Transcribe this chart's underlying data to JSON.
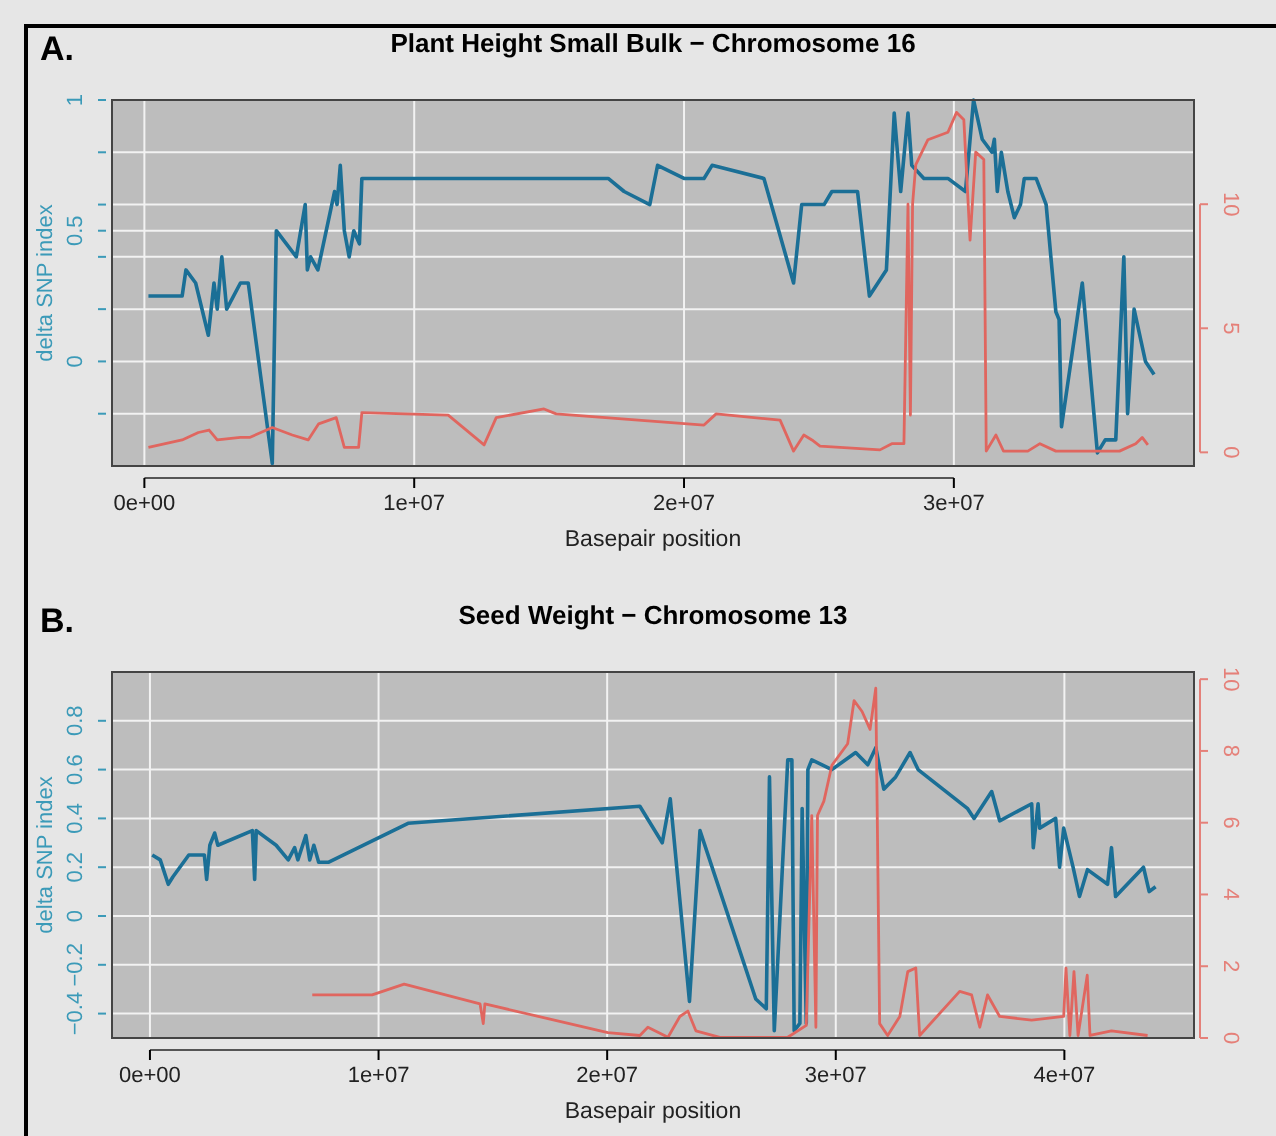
{
  "chart_data": [
    {
      "type": "line",
      "title": "Plant Height Small Bulk − Chromosome 16",
      "xlabel": "Basepair position",
      "ylabel": "delta SNP index",
      "annotations": [
        "A."
      ],
      "grid": true,
      "xlim": [
        -1200000,
        38900000
      ],
      "xticks": [
        {
          "value": 0,
          "label": "0e+00"
        },
        {
          "value": 10000000,
          "label": "1e+07"
        },
        {
          "value": 20000000,
          "label": "2e+07"
        },
        {
          "value": 30000000,
          "label": "3e+07"
        }
      ],
      "ylim": [
        -0.4,
        1
      ],
      "yticks": [
        {
          "value": -0.2,
          "label": null
        },
        0,
        {
          "value": 0.2,
          "label": null
        },
        {
          "value": 0.4,
          "label": null
        },
        0.5,
        {
          "value": 0.6,
          "label": null
        },
        {
          "value": 0.8,
          "label": null
        },
        1
      ],
      "y2lim": [
        -0.55,
        14.2
      ],
      "y2ticks": [
        0,
        5,
        10
      ],
      "series": [
        {
          "color": "#1b6f96",
          "x": [
            150000,
            1400000,
            1540000,
            1900000,
            2370000,
            2580000,
            2700000,
            2870000,
            3050000,
            3560000,
            3850000,
            4740000,
            4890000,
            5630000,
            5960000,
            6040000,
            6160000,
            6430000,
            7050000,
            7140000,
            7260000,
            7410000,
            7590000,
            7760000,
            7970000,
            8060000,
            17190000,
            17780000,
            18730000,
            19020000,
            20000000,
            20740000,
            21040000,
            22960000,
            24060000,
            24360000,
            25190000,
            25480000,
            26430000,
            26870000,
            27500000,
            27790000,
            28030000,
            28300000,
            28440000,
            28890000,
            29780000,
            30430000,
            30730000,
            31050000,
            31410000,
            31500000,
            31610000,
            31760000,
            32000000,
            32240000,
            32470000,
            32610000,
            33050000,
            33420000,
            33780000,
            33900000,
            33990000,
            34760000,
            35320000,
            35610000,
            36000000,
            36300000,
            36440000,
            36680000,
            37100000,
            37420000
          ],
          "values": [
            0.25,
            0.25,
            0.35,
            0.3,
            0.1,
            0.3,
            0.2,
            0.4,
            0.2,
            0.3,
            0.3,
            -0.39,
            0.5,
            0.4,
            0.6,
            0.35,
            0.4,
            0.35,
            0.65,
            0.6,
            0.75,
            0.5,
            0.4,
            0.5,
            0.45,
            0.7,
            0.7,
            0.65,
            0.6,
            0.75,
            0.7,
            0.7,
            0.75,
            0.7,
            0.3,
            0.6,
            0.6,
            0.65,
            0.65,
            0.25,
            0.35,
            0.95,
            0.65,
            0.95,
            0.75,
            0.7,
            0.7,
            0.65,
            1.0,
            0.85,
            0.8,
            0.85,
            0.65,
            0.8,
            0.65,
            0.55,
            0.6,
            0.7,
            0.7,
            0.6,
            0.19,
            0.16,
            -0.25,
            0.3,
            -0.35,
            -0.3,
            -0.3,
            0.4,
            -0.2,
            0.2,
            0,
            -0.05
          ]
        },
        {
          "color": "#e0665f",
          "axis": "y2",
          "x": [
            150000,
            1400000,
            2000000,
            2400000,
            2700000,
            3560000,
            3900000,
            4740000,
            5480000,
            6070000,
            6460000,
            7110000,
            7410000,
            7940000,
            8060000,
            11260000,
            12590000,
            13040000,
            14810000,
            15260000,
            20740000,
            21190000,
            23560000,
            24060000,
            24440000,
            24740000,
            25040000,
            27260000,
            27700000,
            28150000,
            28300000,
            28390000,
            28470000,
            28590000,
            29040000,
            29780000,
            30100000,
            30370000,
            30600000,
            30810000,
            31110000,
            31200000,
            31560000,
            31840000,
            32740000,
            33190000,
            33780000,
            36140000,
            36740000,
            36980000,
            37190000
          ],
          "values": [
            0.2,
            0.5,
            0.8,
            0.9,
            0.5,
            0.6,
            0.6,
            1.0,
            0.7,
            0.5,
            1.15,
            1.4,
            0.2,
            0.2,
            1.6,
            1.5,
            0.3,
            1.4,
            1.75,
            1.55,
            1.1,
            1.55,
            1.3,
            0.05,
            0.7,
            0.5,
            0.25,
            0.1,
            0.35,
            0.35,
            10,
            1.5,
            10,
            11.6,
            12.6,
            12.9,
            13.7,
            13.4,
            8.55,
            12.1,
            11.8,
            0.05,
            0.7,
            0.05,
            0.05,
            0.35,
            0.05,
            0.05,
            0.35,
            0.6,
            0.3
          ]
        }
      ]
    },
    {
      "type": "line",
      "title": "Seed Weight − Chromosome 13",
      "xlabel": "Basepair position",
      "ylabel": "delta SNP index",
      "annotations": [
        "B."
      ],
      "grid": true,
      "xlim": [
        -1660000,
        45670000
      ],
      "xticks": [
        {
          "value": 0,
          "label": "0e+00"
        },
        {
          "value": 10000000,
          "label": "1e+07"
        },
        {
          "value": 20000000,
          "label": "2e+07"
        },
        {
          "value": 30000000,
          "label": "3e+07"
        },
        {
          "value": 40000000,
          "label": "4e+07"
        }
      ],
      "ylim": [
        -0.5,
        1.0
      ],
      "yticks": [
        -0.4,
        -0.2,
        0,
        0.2,
        0.4,
        0.6,
        0.8
      ],
      "y2lim": [
        0,
        10.2
      ],
      "y2ticks": [
        0,
        2,
        4,
        6,
        8,
        10
      ],
      "series": [
        {
          "color": "#1b6f96",
          "x": [
            100000,
            450000,
            800000,
            1000000,
            1700000,
            2380000,
            2480000,
            2620000,
            2830000,
            2970000,
            4480000,
            4580000,
            4650000,
            5520000,
            6050000,
            6330000,
            6470000,
            6820000,
            6990000,
            7170000,
            7380000,
            7800000,
            11290000,
            21430000,
            22410000,
            22760000,
            23600000,
            24060000,
            26500000,
            26960000,
            27100000,
            27310000,
            27900000,
            28080000,
            28180000,
            28430000,
            28530000,
            28710000,
            28780000,
            28950000,
            29830000,
            30870000,
            31400000,
            31750000,
            32100000,
            32620000,
            33250000,
            33600000,
            35770000,
            36050000,
            36820000,
            37170000,
            38570000,
            38640000,
            38850000,
            38920000,
            39620000,
            39790000,
            39970000,
            40380000,
            40660000,
            41010000,
            41890000,
            42060000,
            42240000,
            43460000,
            43710000,
            43990000
          ],
          "values": [
            0.25,
            0.23,
            0.13,
            0.16,
            0.25,
            0.25,
            0.15,
            0.29,
            0.34,
            0.29,
            0.35,
            0.15,
            0.35,
            0.29,
            0.23,
            0.28,
            0.23,
            0.33,
            0.23,
            0.29,
            0.22,
            0.22,
            0.38,
            0.45,
            0.3,
            0.48,
            -0.35,
            0.35,
            -0.34,
            -0.38,
            0.57,
            -0.47,
            0.64,
            0.64,
            -0.47,
            -0.44,
            0.44,
            -0.44,
            0.6,
            0.64,
            0.6,
            0.67,
            0.62,
            0.69,
            0.52,
            0.57,
            0.67,
            0.6,
            0.44,
            0.4,
            0.51,
            0.39,
            0.46,
            0.28,
            0.46,
            0.36,
            0.4,
            0.2,
            0.36,
            0.2,
            0.08,
            0.19,
            0.13,
            0.28,
            0.08,
            0.2,
            0.1,
            0.12
          ]
        },
        {
          "color": "#e0665f",
          "axis": "y2",
          "x": [
            7100000,
            9720000,
            11120000,
            14440000,
            14580000,
            14650000,
            20030000,
            21430000,
            21780000,
            22660000,
            23180000,
            23530000,
            23880000,
            24930000,
            27900000,
            28710000,
            28950000,
            29130000,
            29200000,
            29480000,
            29830000,
            30520000,
            30800000,
            31150000,
            31500000,
            31750000,
            31920000,
            32270000,
            32800000,
            33150000,
            33500000,
            33670000,
            35420000,
            35940000,
            36300000,
            36640000,
            37170000,
            38570000,
            39970000,
            40070000,
            40240000,
            40420000,
            40600000,
            41000000,
            41120000,
            42060000,
            43640000
          ],
          "values": [
            1.2,
            1.2,
            1.5,
            0.95,
            0.4,
            0.95,
            0.15,
            0.07,
            0.3,
            0.02,
            0.6,
            0.75,
            0.2,
            0.02,
            0.02,
            0.35,
            6.2,
            0.3,
            6.2,
            6.6,
            7.6,
            8.2,
            9.4,
            9.1,
            8.6,
            9.75,
            0.4,
            0.07,
            0.6,
            1.85,
            1.95,
            0.07,
            1.3,
            1.2,
            0.3,
            1.2,
            0.6,
            0.5,
            0.6,
            1.95,
            0.07,
            1.85,
            0.07,
            1.75,
            0.07,
            0.2,
            0.07
          ]
        }
      ]
    }
  ]
}
